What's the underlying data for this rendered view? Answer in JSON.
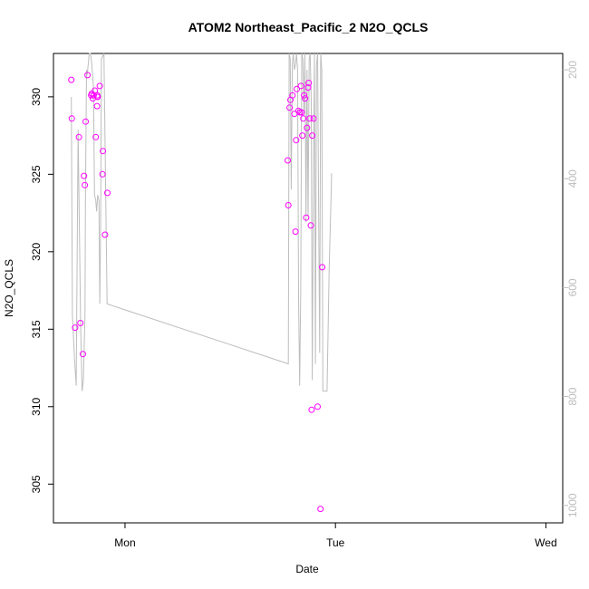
{
  "chart_data": {
    "type": "scatter",
    "title": "ATOM2 Northeast_Pacific_2 N2O_QCLS",
    "xlabel": "Date",
    "ylabel": "N2O_QCLS",
    "x_unit": "days since start of Sunday (Mon = 1, Tue = 2, Wed = 3)",
    "xlim": [
      0.66,
      3.08
    ],
    "ylim": [
      302.5,
      332.8
    ],
    "x_ticks": [
      {
        "value": 1,
        "label": "Mon"
      },
      {
        "value": 2,
        "label": "Tue"
      },
      {
        "value": 3,
        "label": "Wed"
      }
    ],
    "y_ticks": [
      305,
      310,
      315,
      320,
      325,
      330
    ],
    "y2_ticks": [
      200,
      400,
      600,
      800,
      1000
    ],
    "y2_range_at_y_limits": [
      1032,
      170
    ],
    "grid": false,
    "colors": {
      "points": "#ff00ff",
      "profile_line": "#bdbdbd",
      "right_axis": "#bdbdbd"
    },
    "series": [
      {
        "name": "N2O_QCLS",
        "kind": "points",
        "x": [
          0.745,
          0.747,
          0.763,
          0.781,
          0.788,
          0.805,
          0.813,
          0.809,
          0.8,
          0.822,
          0.839,
          0.842,
          0.847,
          0.851,
          0.857,
          0.861,
          0.867,
          0.869,
          0.88,
          0.87,
          0.868,
          0.895,
          0.893,
          0.905,
          0.916,
          1.776,
          1.773,
          1.786,
          1.782,
          1.796,
          1.805,
          1.81,
          1.813,
          1.816,
          1.824,
          1.831,
          1.836,
          1.839,
          1.843,
          1.847,
          1.851,
          1.856,
          1.861,
          1.865,
          1.87,
          1.873,
          1.878,
          1.883,
          1.887,
          1.89,
          1.896,
          1.915,
          1.929,
          1.937
        ],
        "y": [
          331.1,
          328.6,
          315.1,
          327.4,
          315.4,
          324.9,
          328.4,
          324.3,
          313.4,
          331.4,
          330.1,
          330.2,
          329.9,
          330.1,
          330.4,
          327.4,
          329.4,
          330,
          330.7,
          330.0,
          330.1,
          326.5,
          325.0,
          321.1,
          323.8,
          323.0,
          325.9,
          329.8,
          329.3,
          330.1,
          328.9,
          321.3,
          327.2,
          330.5,
          329.1,
          329.0,
          330.7,
          329.0,
          327.5,
          328.6,
          330.1,
          329.9,
          322.2,
          328.0,
          330.6,
          330.9,
          328.6,
          321.7,
          309.8,
          327.5,
          328.6,
          310.0,
          303.4,
          319.0
        ]
      }
    ],
    "profile_line": {
      "name": "altitude profile (right axis)",
      "x": [
        0.745,
        0.75,
        0.76,
        0.768,
        0.777,
        0.789,
        0.796,
        0.802,
        0.81,
        0.812,
        0.817,
        0.82,
        0.83,
        0.836,
        0.842,
        0.844,
        0.85,
        0.855,
        0.861,
        0.865,
        0.87,
        0.876,
        0.88,
        0.884,
        0.888,
        0.9,
        0.915,
        1.776,
        1.78,
        1.785,
        1.79,
        1.795,
        1.8,
        1.805,
        1.81,
        1.815,
        1.82,
        1.825,
        1.83,
        1.835,
        1.84,
        1.845,
        1.85,
        1.855,
        1.86,
        1.865,
        1.87,
        1.875,
        1.88,
        1.885,
        1.89,
        1.895,
        1.9,
        1.905,
        1.91,
        1.915,
        1.92,
        1.925,
        1.93,
        1.935,
        1.94,
        1.95,
        1.96,
        1.97,
        1.982
      ],
      "y2": [
        250,
        650,
        730,
        780,
        310,
        670,
        790,
        770,
        650,
        440,
        200,
        210,
        170,
        170,
        190,
        200,
        230,
        430,
        440,
        460,
        430,
        440,
        630,
        500,
        180,
        170,
        630,
        740,
        170,
        180,
        420,
        190,
        170,
        200,
        190,
        170,
        200,
        620,
        780,
        600,
        170,
        180,
        280,
        170,
        480,
        200,
        470,
        180,
        170,
        260,
        770,
        420,
        170,
        740,
        190,
        170,
        450,
        720,
        170,
        200,
        790,
        790,
        790,
        570,
        390
      ]
    }
  }
}
